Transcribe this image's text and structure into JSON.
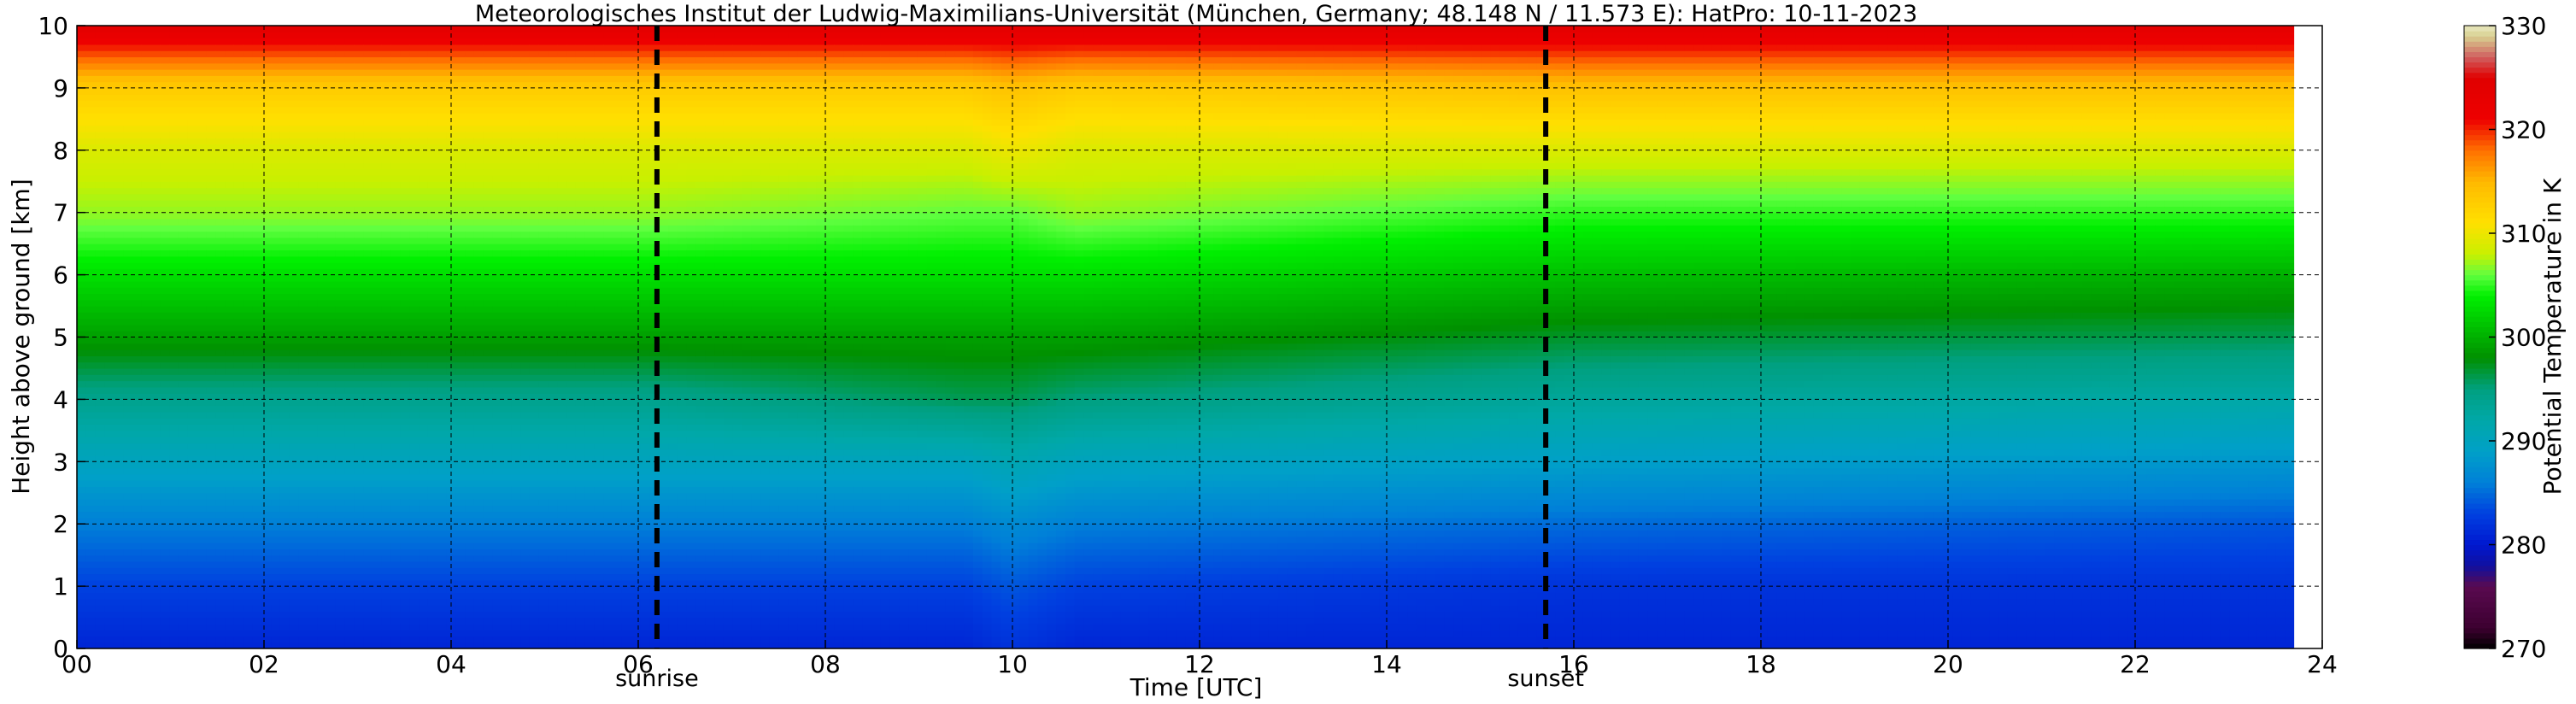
{
  "chart_data": {
    "type": "heatmap",
    "title": "Meteorologisches Institut der Ludwig-Maximilians-Universität (München, Germany; 48.148 N / 11.573 E):    HatPro: 10-11-2023",
    "xlabel": "Time [UTC]",
    "ylabel": "Height above ground [km]",
    "colorbar_label": "Potential Temperature in K",
    "xlim": [
      0,
      24
    ],
    "ylim": [
      0,
      10
    ],
    "x_ticks": [
      "00",
      "02",
      "04",
      "06",
      "08",
      "10",
      "12",
      "14",
      "16",
      "18",
      "20",
      "22",
      "24"
    ],
    "y_ticks": [
      "0",
      "1",
      "2",
      "3",
      "4",
      "5",
      "6",
      "7",
      "8",
      "9",
      "10"
    ],
    "colorbar_range": [
      270,
      330
    ],
    "colorbar_ticks": [
      "270",
      "280",
      "290",
      "300",
      "310",
      "320",
      "330"
    ],
    "grid": true,
    "events": [
      {
        "label": "sunrise",
        "time": 6.2
      },
      {
        "label": "sunset",
        "time": 15.7
      }
    ],
    "data_end_time": 23.7,
    "profile_heights_km": [
      0,
      1,
      2,
      3,
      4,
      5,
      6,
      7,
      8,
      9,
      10
    ],
    "profiles": [
      {
        "time": 0,
        "theta": [
          281,
          283,
          286,
          290,
          294,
          299,
          303,
          307,
          309,
          313,
          324
        ]
      },
      {
        "time": 6,
        "theta": [
          281,
          283,
          286,
          290,
          294,
          299,
          303,
          307,
          309,
          313,
          324
        ]
      },
      {
        "time": 9.5,
        "theta": [
          281,
          283,
          286,
          290,
          296,
          299,
          303,
          306,
          309,
          313,
          324
        ]
      },
      {
        "time": 10,
        "theta": [
          282,
          284,
          287,
          291,
          296,
          299,
          303,
          306,
          310,
          314,
          324
        ]
      },
      {
        "time": 10.7,
        "theta": [
          281,
          283,
          286,
          290,
          295,
          299,
          303,
          307,
          309,
          313,
          324
        ]
      },
      {
        "time": 16,
        "theta": [
          281,
          282,
          285,
          289,
          293,
          297,
          301,
          305,
          309,
          314,
          324
        ]
      },
      {
        "time": 24,
        "theta": [
          281,
          282,
          284,
          288,
          292,
          296,
          300,
          305,
          309,
          314,
          324
        ]
      }
    ],
    "colormap": [
      {
        "value": 270,
        "color": "#000000"
      },
      {
        "value": 272,
        "color": "#3c0030"
      },
      {
        "value": 276,
        "color": "#5a0a50"
      },
      {
        "value": 278,
        "color": "#1010a0"
      },
      {
        "value": 280,
        "color": "#0018d0"
      },
      {
        "value": 283,
        "color": "#0040e0"
      },
      {
        "value": 286,
        "color": "#0080d8"
      },
      {
        "value": 289,
        "color": "#00a0c8"
      },
      {
        "value": 292,
        "color": "#00a8a8"
      },
      {
        "value": 295,
        "color": "#00a080"
      },
      {
        "value": 298,
        "color": "#009000"
      },
      {
        "value": 301,
        "color": "#00c000"
      },
      {
        "value": 304,
        "color": "#00f000"
      },
      {
        "value": 306,
        "color": "#60ff40"
      },
      {
        "value": 308,
        "color": "#c8f000"
      },
      {
        "value": 311,
        "color": "#ffe000"
      },
      {
        "value": 315,
        "color": "#ffb800"
      },
      {
        "value": 318,
        "color": "#ff7000"
      },
      {
        "value": 321,
        "color": "#ee0000"
      },
      {
        "value": 325,
        "color": "#e00000"
      },
      {
        "value": 327,
        "color": "#d06060"
      },
      {
        "value": 329,
        "color": "#d8d090"
      },
      {
        "value": 330,
        "color": "#e8e8c0"
      }
    ]
  }
}
